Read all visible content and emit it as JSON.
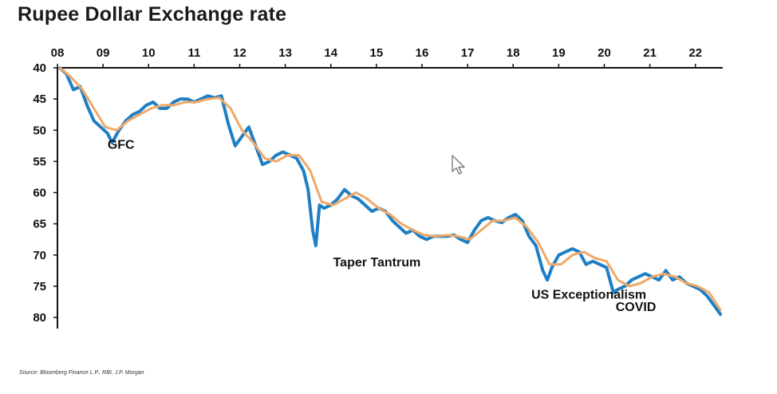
{
  "title": "Rupee Dollar Exchange rate",
  "source": "Source: Bloomberg Finance L.P., RBI, J.P. Morgan",
  "colors": {
    "raw": "#1f7fc4",
    "smooth": "#f0a868",
    "axis": "#111111"
  },
  "chart_data": {
    "type": "line",
    "title": "Rupee Dollar Exchange rate",
    "x_axis": {
      "position": "top",
      "ticks": [
        "08",
        "09",
        "10",
        "11",
        "12",
        "13",
        "14",
        "15",
        "16",
        "17",
        "18",
        "19",
        "20",
        "21",
        "22"
      ],
      "range": [
        2008.0,
        2022.6
      ]
    },
    "y_axis": {
      "inverted": true,
      "ticks": [
        "40",
        "45",
        "50",
        "55",
        "60",
        "65",
        "70",
        "75",
        "80"
      ],
      "range": [
        40,
        80
      ]
    },
    "grid": false,
    "series": [
      {
        "style": "raw",
        "x": [
          2008.05,
          2008.2,
          2008.35,
          2008.5,
          2008.65,
          2008.8,
          2008.95,
          2009.1,
          2009.2,
          2009.35,
          2009.5,
          2009.65,
          2009.8,
          2009.95,
          2010.1,
          2010.25,
          2010.4,
          2010.55,
          2010.7,
          2010.85,
          2011.0,
          2011.15,
          2011.3,
          2011.45,
          2011.6,
          2011.75,
          2011.9,
          2012.05,
          2012.2,
          2012.35,
          2012.5,
          2012.65,
          2012.8,
          2012.95,
          2013.1,
          2013.25,
          2013.4,
          2013.5,
          2013.6,
          2013.67,
          2013.75,
          2013.85,
          2014.0,
          2014.15,
          2014.3,
          2014.45,
          2014.6,
          2014.75,
          2014.9,
          2015.05,
          2015.2,
          2015.35,
          2015.5,
          2015.65,
          2015.8,
          2015.95,
          2016.1,
          2016.25,
          2016.4,
          2016.55,
          2016.7,
          2016.85,
          2017.0,
          2017.15,
          2017.3,
          2017.45,
          2017.6,
          2017.75,
          2017.9,
          2018.05,
          2018.2,
          2018.35,
          2018.5,
          2018.65,
          2018.75,
          2018.85,
          2019.0,
          2019.15,
          2019.3,
          2019.45,
          2019.6,
          2019.75,
          2019.9,
          2020.05,
          2020.2,
          2020.3,
          2020.45,
          2020.6,
          2020.75,
          2020.9,
          2021.05,
          2021.2,
          2021.35,
          2021.5,
          2021.65,
          2021.8,
          2021.95,
          2022.1,
          2022.25,
          2022.4,
          2022.55
        ],
        "y": [
          40.0,
          41.0,
          43.5,
          43.0,
          46.0,
          48.5,
          49.5,
          50.5,
          52.0,
          50.0,
          48.5,
          47.5,
          47.0,
          46.0,
          45.5,
          46.5,
          46.5,
          45.5,
          45.0,
          45.0,
          45.5,
          45.0,
          44.5,
          44.8,
          44.5,
          49.0,
          52.5,
          51.0,
          49.5,
          52.5,
          55.5,
          55.0,
          54.0,
          53.5,
          54.0,
          54.5,
          56.5,
          59.5,
          66.0,
          68.5,
          62.0,
          62.5,
          62.0,
          61.0,
          59.5,
          60.5,
          61.0,
          62.0,
          63.0,
          62.5,
          63.0,
          64.5,
          65.5,
          66.5,
          66.0,
          67.0,
          67.5,
          67.0,
          67.0,
          67.0,
          66.8,
          67.5,
          68.0,
          66.0,
          64.5,
          64.0,
          64.5,
          64.8,
          64.0,
          63.5,
          64.5,
          67.0,
          68.5,
          72.5,
          74.0,
          72.0,
          70.0,
          69.5,
          69.0,
          69.5,
          71.5,
          71.0,
          71.5,
          72.0,
          76.0,
          75.5,
          75.0,
          74.0,
          73.5,
          73.0,
          73.5,
          74.0,
          72.5,
          74.0,
          73.5,
          74.5,
          75.0,
          75.5,
          76.5,
          78.0,
          79.5
        ]
      },
      {
        "style": "smooth",
        "x": [
          2008.05,
          2008.3,
          2008.55,
          2008.8,
          2009.05,
          2009.3,
          2009.55,
          2009.8,
          2010.05,
          2010.3,
          2010.55,
          2010.8,
          2011.05,
          2011.3,
          2011.55,
          2011.8,
          2012.05,
          2012.3,
          2012.55,
          2012.8,
          2013.05,
          2013.3,
          2013.55,
          2013.8,
          2014.05,
          2014.3,
          2014.55,
          2014.8,
          2015.05,
          2015.3,
          2015.55,
          2015.8,
          2016.05,
          2016.3,
          2016.55,
          2016.8,
          2017.05,
          2017.3,
          2017.55,
          2017.8,
          2018.05,
          2018.3,
          2018.55,
          2018.8,
          2019.05,
          2019.3,
          2019.55,
          2019.8,
          2020.05,
          2020.3,
          2020.55,
          2020.8,
          2021.05,
          2021.3,
          2021.55,
          2021.8,
          2022.05,
          2022.3,
          2022.55
        ],
        "y": [
          40.0,
          41.5,
          43.5,
          46.5,
          49.5,
          50.0,
          48.5,
          47.5,
          46.5,
          46.0,
          46.0,
          45.5,
          45.5,
          45.0,
          44.8,
          46.5,
          50.0,
          52.0,
          54.5,
          55.0,
          54.0,
          54.0,
          56.5,
          61.5,
          62.0,
          61.0,
          60.0,
          61.0,
          62.5,
          63.5,
          65.0,
          66.0,
          66.8,
          67.0,
          66.8,
          67.0,
          67.5,
          66.0,
          64.5,
          64.5,
          64.0,
          65.5,
          68.0,
          71.5,
          71.5,
          70.0,
          69.5,
          70.5,
          71.0,
          74.0,
          75.0,
          74.5,
          73.5,
          73.0,
          73.5,
          74.5,
          75.0,
          76.0,
          78.8
        ]
      }
    ],
    "annotations": [
      {
        "text": "GFC",
        "x": 2009.1,
        "y": 53.0
      },
      {
        "text": "Taper Tantrum",
        "x": 2014.05,
        "y": 71.8
      },
      {
        "text": "US Exceptionalism",
        "x": 2018.4,
        "y": 77.0
      },
      {
        "text": "COVID",
        "x": 2020.25,
        "y": 79.0
      }
    ]
  }
}
